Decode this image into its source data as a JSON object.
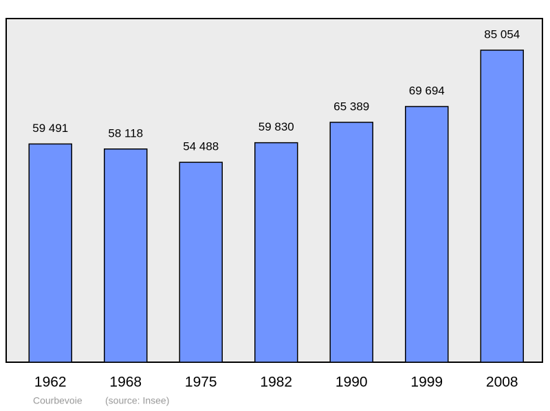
{
  "chart_data": {
    "type": "bar",
    "categories": [
      "1962",
      "1968",
      "1975",
      "1982",
      "1990",
      "1999",
      "2008"
    ],
    "values": [
      59491,
      58118,
      54488,
      59830,
      65389,
      69694,
      85054
    ],
    "value_labels": [
      "59 491",
      "58 118",
      "54 488",
      "59 830",
      "65 389",
      "69 694",
      "85 054"
    ],
    "color": "#7094ff",
    "subtitle": "Courbevoie",
    "caption": "(source: Insee)"
  }
}
